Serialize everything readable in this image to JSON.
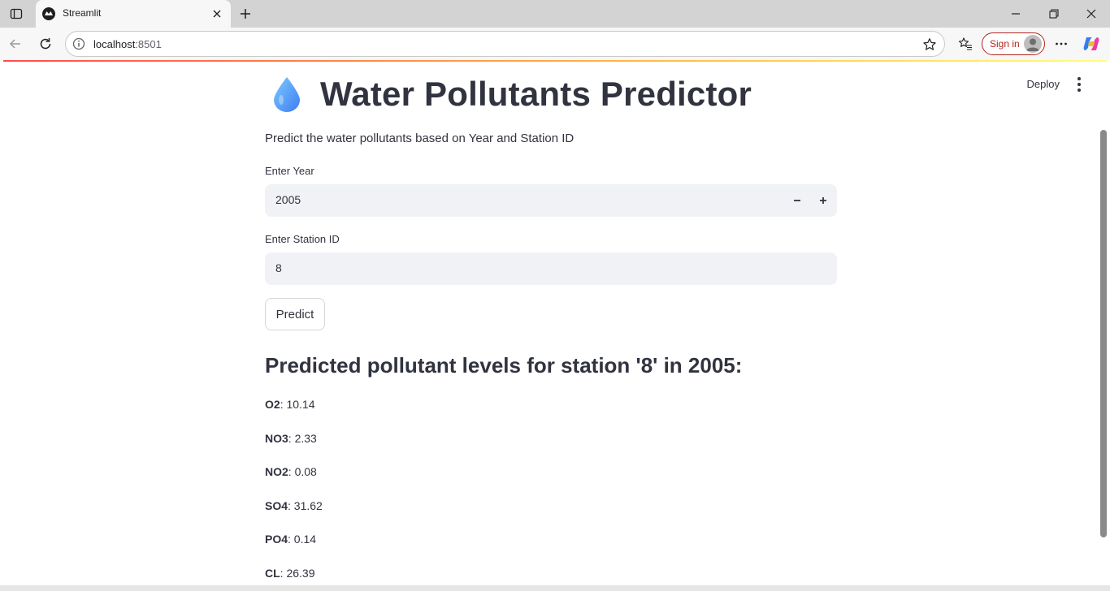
{
  "browser": {
    "tab_title": "Streamlit",
    "url_host": "localhost",
    "url_port": ":8501",
    "signin_label": "Sign in"
  },
  "app": {
    "deploy_label": "Deploy",
    "title": "Water Pollutants Predictor",
    "subtitle": "Predict the water pollutants based on Year and Station ID",
    "year_label": "Enter Year",
    "year_value": "2005",
    "station_label": "Enter Station ID",
    "station_value": "8",
    "predict_label": "Predict",
    "result_heading": "Predicted pollutant levels for station '8' in 2005:",
    "results": [
      {
        "name": "O2",
        "value": "10.14"
      },
      {
        "name": "NO3",
        "value": "2.33"
      },
      {
        "name": "NO2",
        "value": "0.08"
      },
      {
        "name": "SO4",
        "value": "31.62"
      },
      {
        "name": "PO4",
        "value": "0.14"
      },
      {
        "name": "CL",
        "value": "26.39"
      }
    ]
  },
  "colors": {
    "accent": "#ff4b4b",
    "text": "#31333f",
    "input_bg": "#f0f2f6",
    "signin": "#b3261e"
  },
  "icons": [
    "sidebar-toggle-icon",
    "streamlit-favicon-icon",
    "close-icon",
    "plus-icon",
    "minimize-icon",
    "restore-icon",
    "window-close-icon",
    "back-icon",
    "reload-icon",
    "info-icon",
    "star-icon",
    "favorites-icon",
    "more-icon",
    "copilot-icon",
    "water-drop-icon",
    "minus-icon",
    "kebab-menu-icon"
  ]
}
